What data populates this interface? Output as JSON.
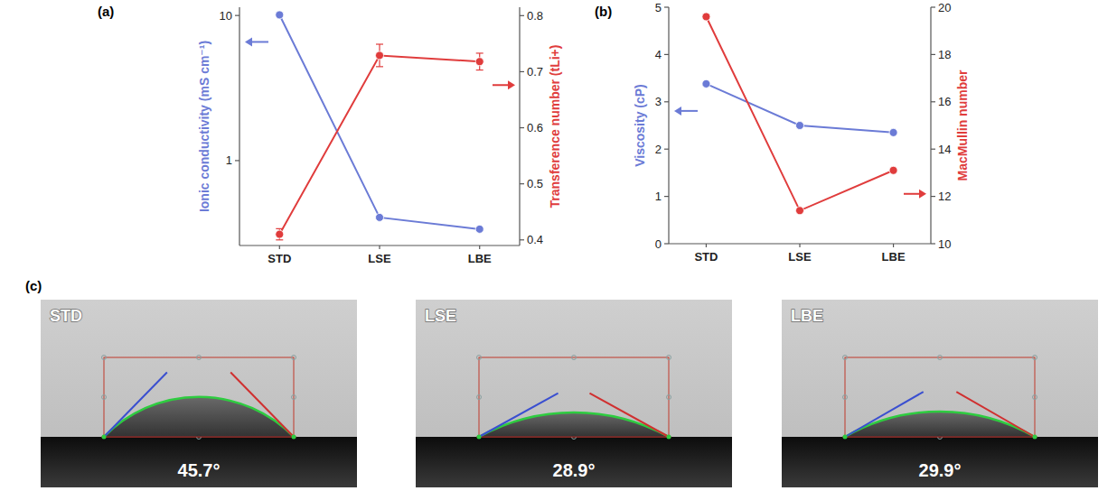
{
  "chart_data": [
    {
      "type": "line",
      "panel_label": "(a)",
      "categories": [
        "STD",
        "LSE",
        "LBE"
      ],
      "y_label": "Ionic conductivity (mS cm⁻¹)",
      "y2_label": "Transference number (tLi+)",
      "log": "y",
      "ylim": [
        0.26,
        11.4
      ],
      "yticks": [
        1,
        10
      ],
      "y2lim": [
        0.39,
        0.815
      ],
      "y2ticks": [
        0.4,
        0.5,
        0.6,
        0.7,
        0.8
      ],
      "grid": false,
      "marker": "circle",
      "series": [
        {
          "color": "#6b7bd6",
          "values": [
            10.1,
            0.406,
            0.337
          ]
        },
        {
          "color": "#e03c3c",
          "axis": "y2",
          "values": [
            0.41,
            0.729,
            0.718
          ],
          "errors": [
            0.01,
            0.02,
            0.015
          ]
        }
      ]
    },
    {
      "type": "line",
      "panel_label": "(b)",
      "categories": [
        "STD",
        "LSE",
        "LBE"
      ],
      "y_label": "Viscosity (cP)",
      "y2_label": "MacMullin number",
      "ylim": [
        0,
        5
      ],
      "yticks": [
        0,
        1,
        2,
        3,
        4,
        5
      ],
      "y2lim": [
        10,
        20
      ],
      "y2ticks": [
        10,
        12,
        14,
        16,
        18,
        20
      ],
      "grid": false,
      "marker": "circle",
      "series": [
        {
          "color": "#6b7bd6",
          "values": [
            3.38,
            2.5,
            2.35
          ]
        },
        {
          "color": "#e03c3c",
          "axis": "y2",
          "values": [
            19.6,
            11.4,
            13.1
          ]
        }
      ]
    }
  ],
  "contact_angle": {
    "panel_label": "(c)",
    "images": [
      {
        "name": "STD",
        "angle": 45.7,
        "angle_label": "45.7°"
      },
      {
        "name": "LSE",
        "angle": 28.9,
        "angle_label": "28.9°"
      },
      {
        "name": "LBE",
        "angle": 29.9,
        "angle_label": "29.9°"
      }
    ]
  }
}
